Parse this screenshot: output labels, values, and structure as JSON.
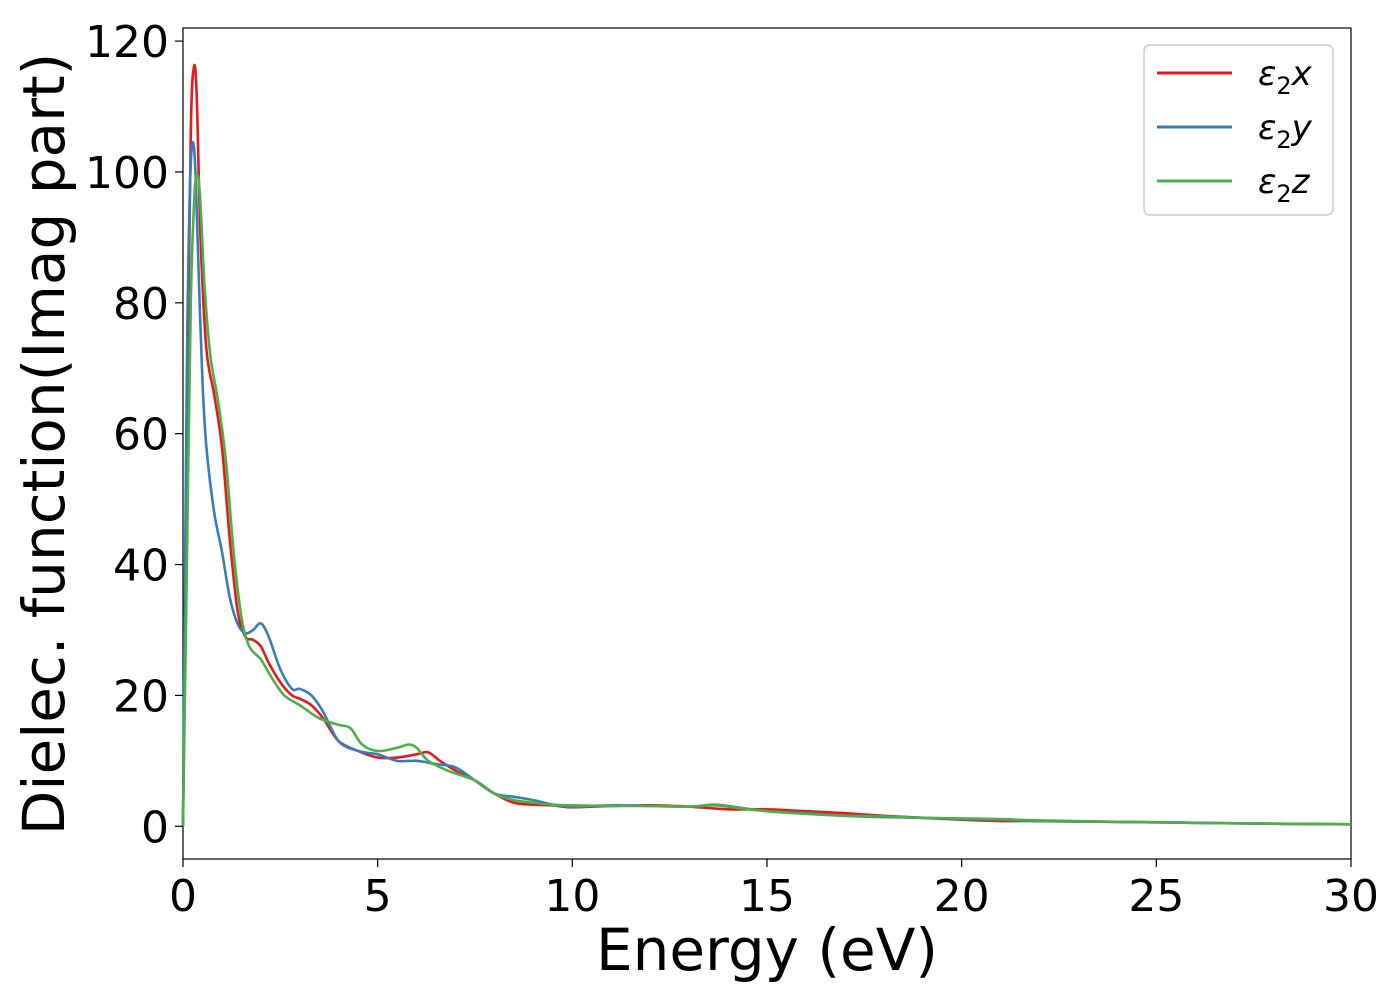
{
  "chart_data": {
    "type": "line",
    "title": "",
    "xlabel": "Energy (eV)",
    "ylabel": "Dielec. function(Imag part)",
    "xlim": [
      0,
      30
    ],
    "ylim": [
      -5,
      122
    ],
    "xticks": [
      0,
      5,
      10,
      15,
      20,
      25,
      30
    ],
    "yticks": [
      0,
      20,
      40,
      60,
      80,
      100,
      120
    ],
    "grid": false,
    "legend_position": "top-right",
    "series": [
      {
        "name": "ε₂x",
        "legend_base": "ε",
        "legend_sub": "2",
        "legend_suffix": "x",
        "color": "#e41a1c",
        "x": [
          0,
          0.1,
          0.2,
          0.28,
          0.35,
          0.45,
          0.6,
          0.8,
          1.0,
          1.2,
          1.4,
          1.6,
          1.8,
          2.0,
          2.2,
          2.5,
          2.8,
          3.0,
          3.3,
          3.6,
          4.0,
          4.5,
          5.0,
          5.5,
          6.0,
          6.3,
          6.6,
          7.0,
          7.5,
          8.0,
          8.5,
          9.0,
          9.5,
          10.0,
          11.0,
          12.0,
          13.0,
          14.0,
          15.0,
          16.0,
          17.0,
          18.0,
          19.0,
          20.0,
          21.0,
          22.0,
          25.0,
          28.0,
          30.0
        ],
        "y": [
          0,
          60,
          106,
          116,
          112,
          90,
          73,
          66,
          58,
          44,
          33,
          29,
          28.5,
          27.5,
          25,
          22,
          20,
          19.5,
          18.5,
          16.5,
          13,
          11.5,
          10.5,
          10.5,
          11,
          11.3,
          10,
          8.5,
          7,
          5,
          3.6,
          3.3,
          3.2,
          2.9,
          3.1,
          3.2,
          3,
          2.6,
          2.6,
          2.3,
          2,
          1.6,
          1.3,
          1,
          0.8,
          0.8,
          0.6,
          0.4,
          0.3
        ]
      },
      {
        "name": "ε₂y",
        "legend_base": "ε",
        "legend_sub": "2",
        "legend_suffix": "y",
        "color": "#377eb8",
        "x": [
          0,
          0.1,
          0.18,
          0.25,
          0.32,
          0.4,
          0.5,
          0.6,
          0.8,
          1.0,
          1.2,
          1.4,
          1.6,
          1.8,
          2.0,
          2.2,
          2.5,
          2.8,
          3.0,
          3.3,
          3.6,
          4.0,
          4.5,
          5.0,
          5.5,
          6.0,
          6.5,
          7.0,
          7.5,
          8.0,
          8.5,
          9.0,
          9.5,
          10.0,
          11.0,
          12.0,
          13.0,
          13.6,
          14.0,
          15.0,
          16.0,
          17.0,
          18.0,
          19.0,
          20.0,
          21.0,
          22.0,
          25.0,
          28.0,
          30.0
        ],
        "y": [
          0,
          70,
          98,
          104.5,
          100,
          85,
          68,
          58,
          48,
          42,
          35,
          31,
          29.5,
          30,
          31,
          29,
          24,
          21,
          21,
          20,
          17.5,
          13,
          11.5,
          11,
          10,
          10,
          9.5,
          9,
          7,
          5,
          4.5,
          4,
          3.3,
          3,
          3.2,
          3.1,
          3,
          3.3,
          3.1,
          2.3,
          2,
          1.6,
          1.4,
          1.3,
          1.1,
          1,
          0.8,
          0.6,
          0.4,
          0.3
        ]
      },
      {
        "name": "ε₂z",
        "legend_base": "ε",
        "legend_sub": "2",
        "legend_suffix": "z",
        "color": "#4daf4a",
        "x": [
          0,
          0.1,
          0.2,
          0.3,
          0.38,
          0.45,
          0.55,
          0.7,
          0.9,
          1.1,
          1.3,
          1.5,
          1.7,
          2.0,
          2.3,
          2.6,
          3.0,
          3.5,
          4.0,
          4.3,
          4.6,
          5.0,
          5.5,
          5.8,
          6.0,
          6.3,
          6.8,
          7.5,
          8.0,
          8.5,
          9.0,
          9.5,
          10.0,
          11.0,
          12.0,
          13.0,
          13.6,
          14.0,
          15.0,
          16.0,
          17.0,
          18.0,
          19.0,
          20.0,
          21.0,
          22.0,
          25.0,
          28.0,
          30.0
        ],
        "y": [
          0,
          40,
          80,
          97,
          99.5,
          95,
          83,
          72,
          65,
          56,
          42,
          32,
          27.5,
          25.5,
          22.5,
          20,
          18.5,
          16.5,
          15.5,
          15,
          12.5,
          11.5,
          12,
          12.5,
          12,
          10,
          8.5,
          7,
          5,
          4,
          3.6,
          3.3,
          3.2,
          3.1,
          3.1,
          3,
          3.2,
          3,
          2.3,
          1.9,
          1.6,
          1.5,
          1.3,
          1.2,
          1.1,
          0.9,
          0.6,
          0.4,
          0.3
        ]
      }
    ]
  }
}
